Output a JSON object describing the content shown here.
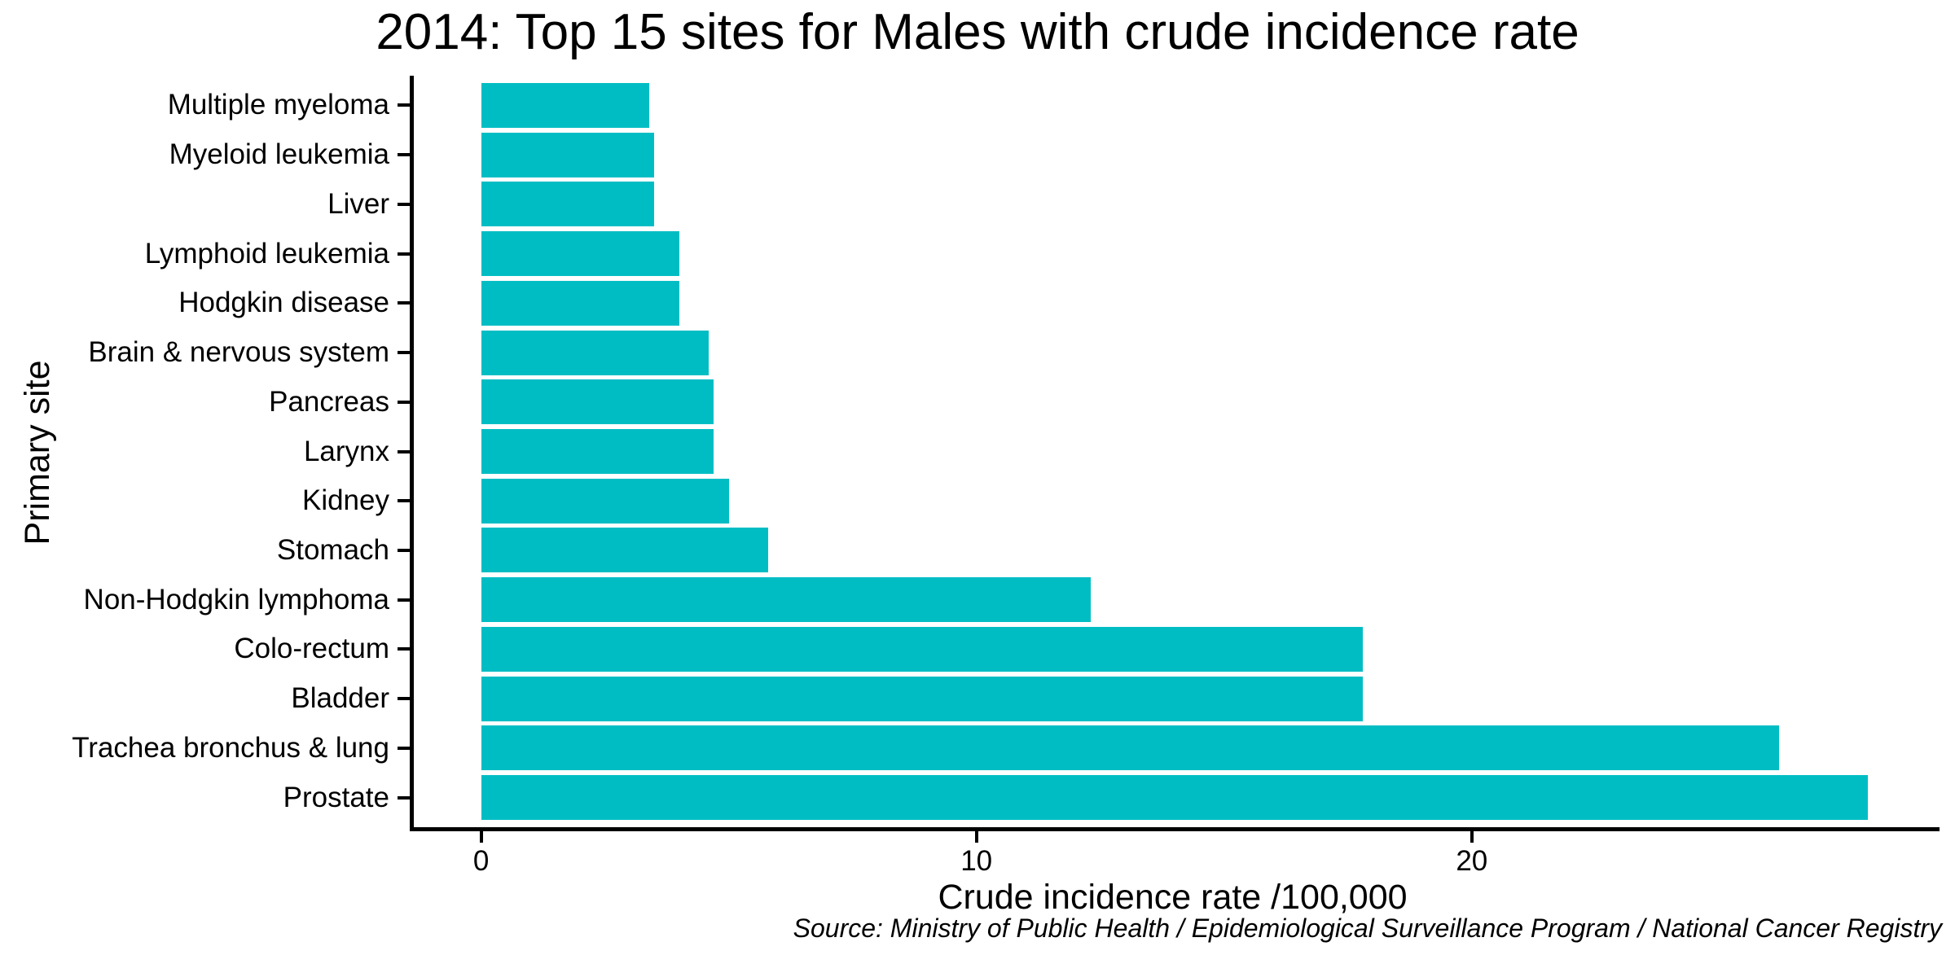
{
  "chart_data": {
    "type": "bar",
    "orientation": "horizontal",
    "title": "2014: Top 15 sites for Males with crude incidence rate",
    "xlabel": "Crude incidence rate /100,000",
    "ylabel": "Primary site",
    "source": "Source: Ministry of Public Health / Epidemiological Surveillance Program / National Cancer Registry",
    "categories": [
      "Multiple myeloma",
      "Myeloid leukemia",
      "Liver",
      "Lymphoid leukemia",
      "Hodgkin disease",
      "Brain & nervous system",
      "Pancreas",
      "Larynx",
      "Kidney",
      "Stomach",
      "Non-Hodgkin lymphoma",
      "Colo-rectum",
      "Bladder",
      "Trachea bronchus & lung",
      "Prostate"
    ],
    "values": [
      3.4,
      3.5,
      3.5,
      4.0,
      4.0,
      4.6,
      4.7,
      4.7,
      5.0,
      5.8,
      12.3,
      17.8,
      17.8,
      26.2,
      28.0
    ],
    "x_ticks": [
      0,
      10,
      20
    ],
    "x_tick_labels": [
      "0",
      "10",
      "20"
    ],
    "xlim": [
      -1.44,
      29.36
    ],
    "grid": "off",
    "legend": "none",
    "bar_color": "#00BDC4",
    "axis_color": "#000000",
    "background_color": "#FFFFFF",
    "text_color": "#000000"
  }
}
